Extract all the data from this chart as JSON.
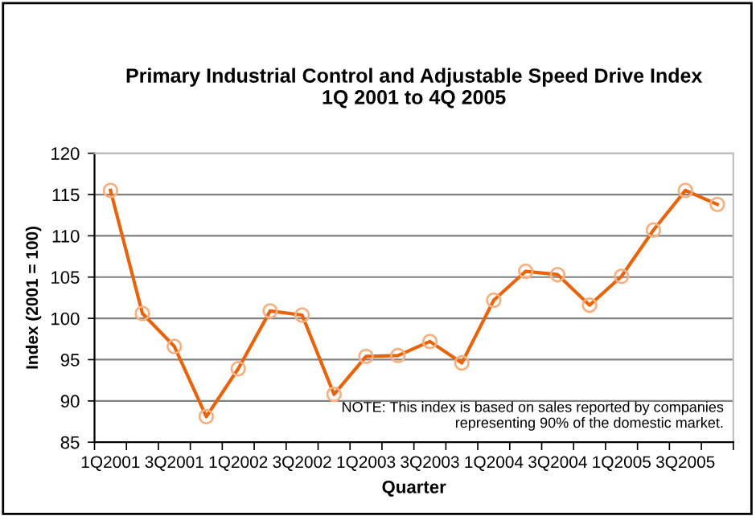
{
  "chart_data": {
    "type": "line",
    "title": "Primary Industrial Control and Adjustable Speed Drive Index\n1Q 2001 to 4Q 2005",
    "xlabel": "Quarter",
    "ylabel": "Index (2001 = 100)",
    "categories": [
      "1Q2001",
      null,
      "3Q2001",
      null,
      "1Q2002",
      null,
      "3Q2002",
      null,
      "1Q2003",
      null,
      "3Q2003",
      null,
      "1Q2004",
      null,
      "3Q2004",
      null,
      "1Q2005",
      null,
      "3Q2005",
      null
    ],
    "series": [
      {
        "color": "#e8640c",
        "values": [
          115.5,
          100.6,
          96.6,
          88.1,
          93.9,
          100.9,
          100.4,
          90.8,
          95.4,
          95.5,
          97.2,
          94.6,
          102.2,
          105.7,
          105.3,
          101.6,
          105.1,
          110.7,
          115.5,
          113.8
        ]
      }
    ],
    "ylim": [
      85,
      120
    ],
    "yticks": [
      85,
      90,
      95,
      100,
      105,
      110,
      115,
      120
    ],
    "grid": "y",
    "marker": "circle",
    "line_style": "solid",
    "annotations": [
      {
        "text": "NOTE: This index is based on sales reported by companies\nrepresenting 90% of the domestic market."
      }
    ]
  }
}
